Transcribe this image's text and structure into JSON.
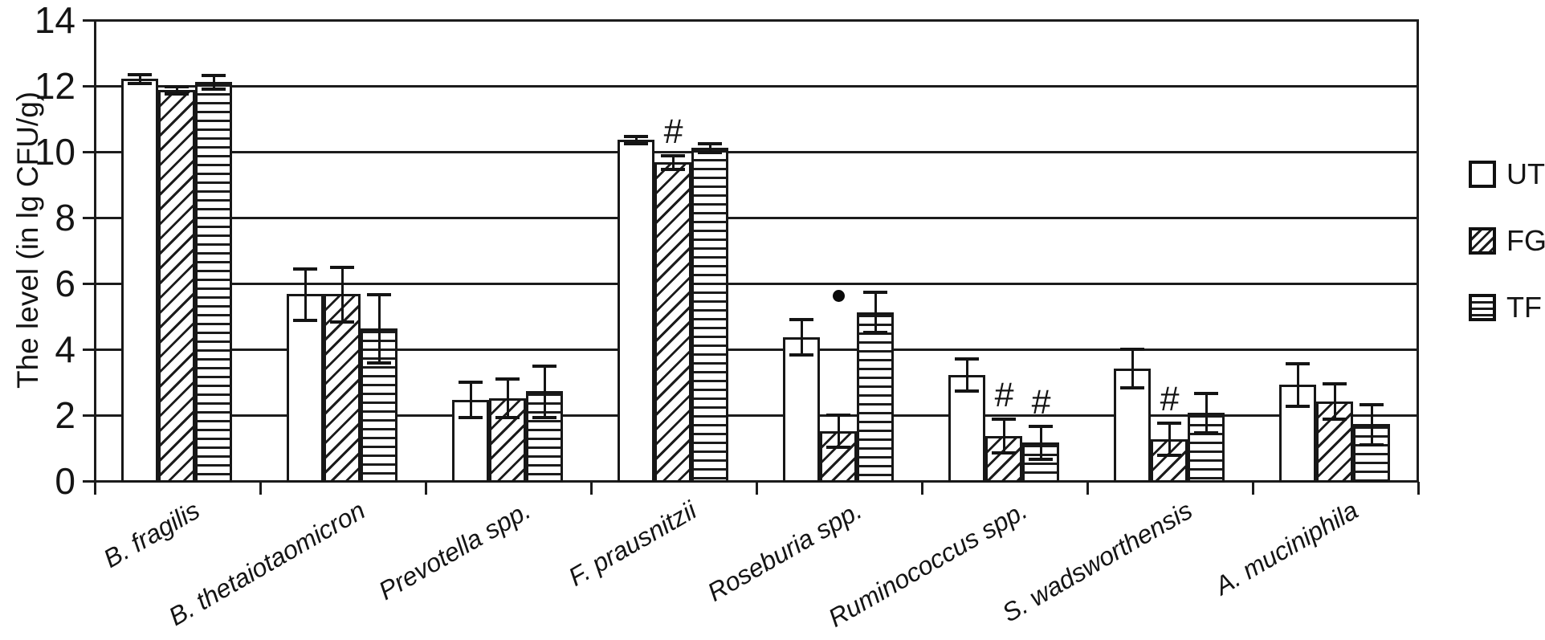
{
  "chart_data": {
    "type": "bar",
    "title": "",
    "ylabel": "The level (in lg CFU/g)",
    "xlabel": "",
    "ylim": [
      0,
      14
    ],
    "yticks": [
      0,
      2,
      4,
      6,
      8,
      10,
      12,
      14
    ],
    "grid": true,
    "legend_position": "right",
    "bar_fill_color": "#ffffff",
    "line_color": "#1c1c1c",
    "categories": [
      "B. fragilis",
      "B. thetaiotaomicron",
      "Prevotella spp.",
      "F. prausnitzii",
      "Roseburia spp.",
      "Ruminococcus spp.",
      "S. wadsworthensis",
      "A. muciniphila"
    ],
    "series": [
      {
        "name": "UT",
        "pattern": "plain",
        "values": [
          12.2,
          5.65,
          2.45,
          10.35,
          4.35,
          3.2,
          3.4,
          2.9
        ],
        "errors": [
          0.15,
          0.8,
          0.55,
          0.12,
          0.55,
          0.5,
          0.6,
          0.65
        ],
        "markers": [
          "",
          "",
          "",
          "",
          "",
          "",
          "",
          ""
        ]
      },
      {
        "name": "FG",
        "pattern": "diagonal-hatch",
        "values": [
          11.85,
          5.65,
          2.5,
          9.65,
          1.5,
          1.35,
          1.25,
          2.4
        ],
        "errors": [
          0.12,
          0.85,
          0.6,
          0.22,
          0.5,
          0.52,
          0.5,
          0.55
        ],
        "markers": [
          "",
          "",
          "",
          "#",
          "",
          "#",
          "#",
          ""
        ]
      },
      {
        "name": "TF",
        "pattern": "horizontal-stripes",
        "values": [
          12.1,
          4.6,
          2.7,
          10.1,
          5.1,
          1.15,
          2.05,
          1.7
        ],
        "errors": [
          0.22,
          1.05,
          0.8,
          0.15,
          0.62,
          0.52,
          0.6,
          0.62
        ],
        "markers": [
          "",
          "",
          "",
          "",
          "•",
          "#",
          "",
          ""
        ]
      }
    ]
  },
  "legend": {
    "items": [
      {
        "label": "UT",
        "pattern": "plain"
      },
      {
        "label": "FG",
        "pattern": "diagonal-hatch"
      },
      {
        "label": "TF",
        "pattern": "horizontal-stripes"
      }
    ]
  }
}
